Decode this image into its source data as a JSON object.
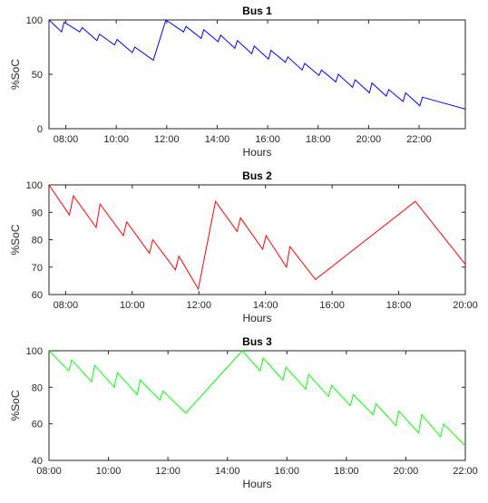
{
  "chart_data": [
    {
      "type": "line",
      "title": "Bus 1",
      "xlabel": "Hours",
      "ylabel": "%SoC",
      "xlim": [
        "07:20",
        "23:50"
      ],
      "ylim": [
        0,
        100
      ],
      "xticks": [
        "08:00",
        "10:00",
        "12:00",
        "14:00",
        "16:00",
        "18:00",
        "20:00",
        "22:00"
      ],
      "yticks": [
        0,
        50,
        100
      ],
      "color": "#0000ff",
      "series": [
        {
          "points": [
            [
              "07:20",
              100
            ],
            [
              "07:50",
              89
            ],
            [
              "07:56",
              98
            ],
            [
              "08:33",
              89
            ],
            [
              "08:39",
              93
            ],
            [
              "09:14",
              81
            ],
            [
              "09:20",
              87
            ],
            [
              "09:56",
              77
            ],
            [
              "10:02",
              82
            ],
            [
              "10:38",
              70
            ],
            [
              "10:44",
              75
            ],
            [
              "11:28",
              63
            ],
            [
              "11:58",
              100
            ],
            [
              "12:40",
              89
            ],
            [
              "12:46",
              94
            ],
            [
              "13:22",
              83
            ],
            [
              "13:28",
              91
            ],
            [
              "14:02",
              80
            ],
            [
              "14:08",
              86
            ],
            [
              "14:42",
              74
            ],
            [
              "14:48",
              81
            ],
            [
              "15:22",
              69
            ],
            [
              "15:28",
              76
            ],
            [
              "16:02",
              64
            ],
            [
              "16:08",
              72
            ],
            [
              "16:42",
              61
            ],
            [
              "16:48",
              66
            ],
            [
              "17:22",
              54
            ],
            [
              "17:28",
              60
            ],
            [
              "18:02",
              49
            ],
            [
              "18:08",
              54
            ],
            [
              "18:42",
              43
            ],
            [
              "18:48",
              50
            ],
            [
              "19:22",
              38
            ],
            [
              "19:28",
              45
            ],
            [
              "20:02",
              33
            ],
            [
              "20:08",
              42
            ],
            [
              "20:42",
              30
            ],
            [
              "20:48",
              36
            ],
            [
              "21:22",
              25
            ],
            [
              "21:28",
              33
            ],
            [
              "22:02",
              21
            ],
            [
              "22:08",
              29
            ],
            [
              "23:50",
              18
            ]
          ]
        }
      ]
    },
    {
      "type": "line",
      "title": "Bus 2",
      "xlabel": "Hours",
      "ylabel": "%SoC",
      "xlim": [
        "07:30",
        "20:00"
      ],
      "ylim": [
        60,
        100
      ],
      "xticks": [
        "08:00",
        "10:00",
        "12:00",
        "14:00",
        "16:00",
        "18:00",
        "20:00"
      ],
      "yticks": [
        60,
        70,
        80,
        90,
        100
      ],
      "color": "#ff0000",
      "series": [
        {
          "points": [
            [
              "07:30",
              100
            ],
            [
              "08:07",
              89
            ],
            [
              "08:14",
              96
            ],
            [
              "08:55",
              84.5
            ],
            [
              "09:02",
              93
            ],
            [
              "09:44",
              81.5
            ],
            [
              "09:50",
              86.5
            ],
            [
              "10:31",
              75
            ],
            [
              "10:37",
              80
            ],
            [
              "11:18",
              69
            ],
            [
              "11:24",
              74
            ],
            [
              "11:59",
              62
            ],
            [
              "12:30",
              94
            ],
            [
              "13:09",
              83
            ],
            [
              "13:15",
              88
            ],
            [
              "13:55",
              76.5
            ],
            [
              "14:01",
              81.5
            ],
            [
              "14:38",
              70
            ],
            [
              "14:44",
              77.5
            ],
            [
              "15:30",
              65.5
            ],
            [
              "18:30",
              94
            ],
            [
              "20:00",
              71
            ]
          ]
        }
      ]
    },
    {
      "type": "line",
      "title": "Bus 3",
      "xlabel": "Hours",
      "ylabel": "%SoC",
      "xlim": [
        "08:00",
        "22:00"
      ],
      "ylim": [
        40,
        100
      ],
      "xticks": [
        "08:00",
        "10:00",
        "12:00",
        "14:00",
        "16:00",
        "18:00",
        "20:00",
        "22:00"
      ],
      "yticks": [
        40,
        60,
        80,
        100
      ],
      "color": "#00ff00",
      "series": [
        {
          "points": [
            [
              "08:00",
              100
            ],
            [
              "08:40",
              89
            ],
            [
              "08:46",
              95
            ],
            [
              "09:26",
              83
            ],
            [
              "09:32",
              92
            ],
            [
              "10:12",
              80
            ],
            [
              "10:18",
              88
            ],
            [
              "10:58",
              76
            ],
            [
              "11:04",
              84
            ],
            [
              "11:44",
              73
            ],
            [
              "11:50",
              78
            ],
            [
              "12:36",
              66
            ],
            [
              "14:30",
              100
            ],
            [
              "15:06",
              89
            ],
            [
              "15:12",
              96
            ],
            [
              "15:52",
              84
            ],
            [
              "15:58",
              91
            ],
            [
              "16:38",
              79
            ],
            [
              "16:44",
              87
            ],
            [
              "17:24",
              75
            ],
            [
              "17:30",
              81
            ],
            [
              "18:08",
              70
            ],
            [
              "18:14",
              76
            ],
            [
              "18:54",
              65
            ],
            [
              "19:00",
              71
            ],
            [
              "19:40",
              59
            ],
            [
              "19:46",
              67
            ],
            [
              "20:26",
              55
            ],
            [
              "20:32",
              65
            ],
            [
              "21:10",
              53
            ],
            [
              "21:16",
              60
            ],
            [
              "22:00",
              48
            ]
          ]
        }
      ]
    }
  ]
}
